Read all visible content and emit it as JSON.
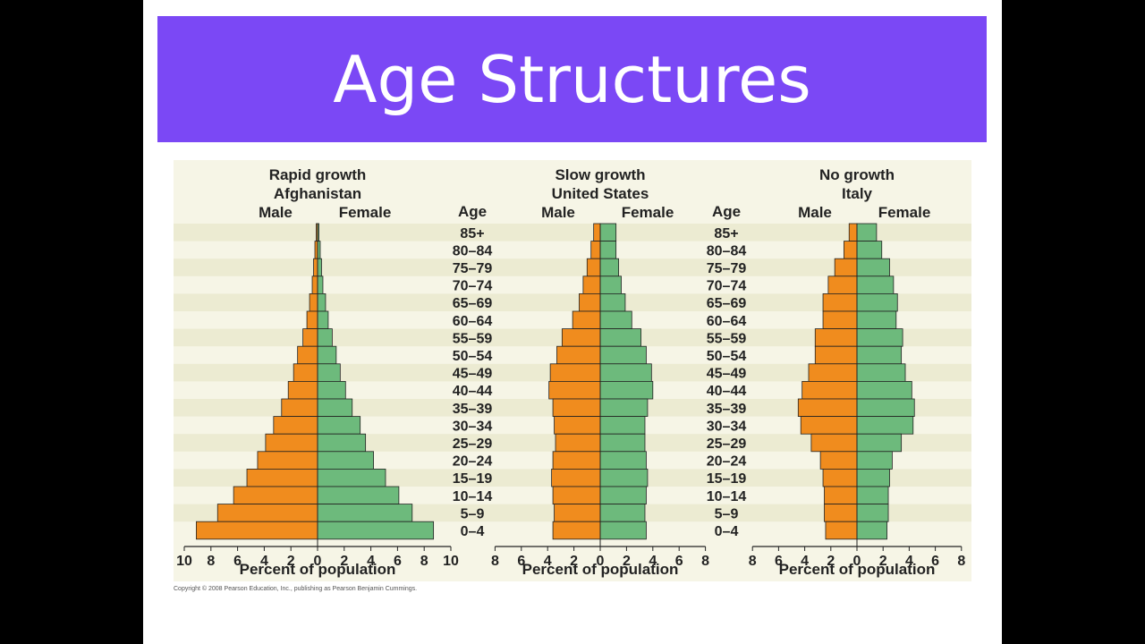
{
  "slide": {
    "title": "Age Structures",
    "copyright": "Copyright © 2008 Pearson Education, Inc., publishing as Pearson Benjamin Cummings."
  },
  "colors": {
    "male": "#f08c1e",
    "female": "#6dba7c",
    "stripe": "#ecebd2",
    "background": "#f6f5e6",
    "title_bar": "#7b48f5"
  },
  "labels": {
    "age": "Age",
    "male": "Male",
    "female": "Female",
    "xlabel": "Percent of population"
  },
  "chart_data": [
    {
      "type": "bar",
      "title": "Rapid growth",
      "subtitle": "Afghanistan",
      "categories": [
        "85+",
        "80–84",
        "75–79",
        "70–74",
        "65–69",
        "60–64",
        "55–59",
        "50–54",
        "45–49",
        "40–44",
        "35–39",
        "30–34",
        "25–29",
        "20–24",
        "15–19",
        "10–14",
        "5–9",
        "0–4"
      ],
      "series": [
        {
          "name": "Male",
          "values": [
            0.1,
            0.2,
            0.3,
            0.4,
            0.6,
            0.8,
            1.1,
            1.5,
            1.8,
            2.2,
            2.7,
            3.3,
            3.9,
            4.5,
            5.3,
            6.3,
            7.5,
            9.1
          ]
        },
        {
          "name": "Female",
          "values": [
            0.1,
            0.2,
            0.3,
            0.4,
            0.6,
            0.8,
            1.1,
            1.4,
            1.7,
            2.1,
            2.6,
            3.2,
            3.6,
            4.2,
            5.1,
            6.1,
            7.1,
            8.7
          ]
        }
      ],
      "xlim": [
        -10,
        10
      ],
      "ticks": [
        10,
        8,
        6,
        4,
        2,
        0,
        2,
        4,
        6,
        8,
        10
      ],
      "xlabel": "Percent of population"
    },
    {
      "type": "bar",
      "title": "Slow growth",
      "subtitle": "United States",
      "categories": [
        "85+",
        "80–84",
        "75–79",
        "70–74",
        "65–69",
        "60–64",
        "55–59",
        "50–54",
        "45–49",
        "40–44",
        "35–39",
        "30–34",
        "25–29",
        "20–24",
        "15–19",
        "10–14",
        "5–9",
        "0–4"
      ],
      "series": [
        {
          "name": "Male",
          "values": [
            0.5,
            0.7,
            1.0,
            1.3,
            1.6,
            2.1,
            2.9,
            3.3,
            3.8,
            3.9,
            3.6,
            3.5,
            3.4,
            3.6,
            3.7,
            3.6,
            3.5,
            3.6
          ]
        },
        {
          "name": "Female",
          "values": [
            1.2,
            1.2,
            1.4,
            1.6,
            1.9,
            2.4,
            3.1,
            3.5,
            3.9,
            4.0,
            3.6,
            3.4,
            3.4,
            3.5,
            3.6,
            3.5,
            3.4,
            3.5
          ]
        }
      ],
      "xlim": [
        -8,
        8
      ],
      "ticks": [
        8,
        6,
        4,
        2,
        0,
        2,
        4,
        6,
        8
      ],
      "xlabel": "Percent of population"
    },
    {
      "type": "bar",
      "title": "No growth",
      "subtitle": "Italy",
      "categories": [
        "85+",
        "80–84",
        "75–79",
        "70–74",
        "65–69",
        "60–64",
        "55–59",
        "50–54",
        "45–49",
        "40–44",
        "35–39",
        "30–34",
        "25–29",
        "20–24",
        "15–19",
        "10–14",
        "5–9",
        "0–4"
      ],
      "series": [
        {
          "name": "Male",
          "values": [
            0.6,
            1.0,
            1.7,
            2.2,
            2.6,
            2.6,
            3.2,
            3.2,
            3.7,
            4.2,
            4.5,
            4.3,
            3.5,
            2.8,
            2.6,
            2.5,
            2.5,
            2.4
          ]
        },
        {
          "name": "Female",
          "values": [
            1.5,
            1.9,
            2.5,
            2.8,
            3.1,
            3.0,
            3.5,
            3.4,
            3.7,
            4.2,
            4.4,
            4.3,
            3.4,
            2.7,
            2.5,
            2.4,
            2.4,
            2.3
          ]
        }
      ],
      "xlim": [
        -8,
        8
      ],
      "ticks": [
        8,
        6,
        4,
        2,
        0,
        2,
        4,
        6,
        8
      ],
      "xlabel": "Percent of population"
    }
  ]
}
